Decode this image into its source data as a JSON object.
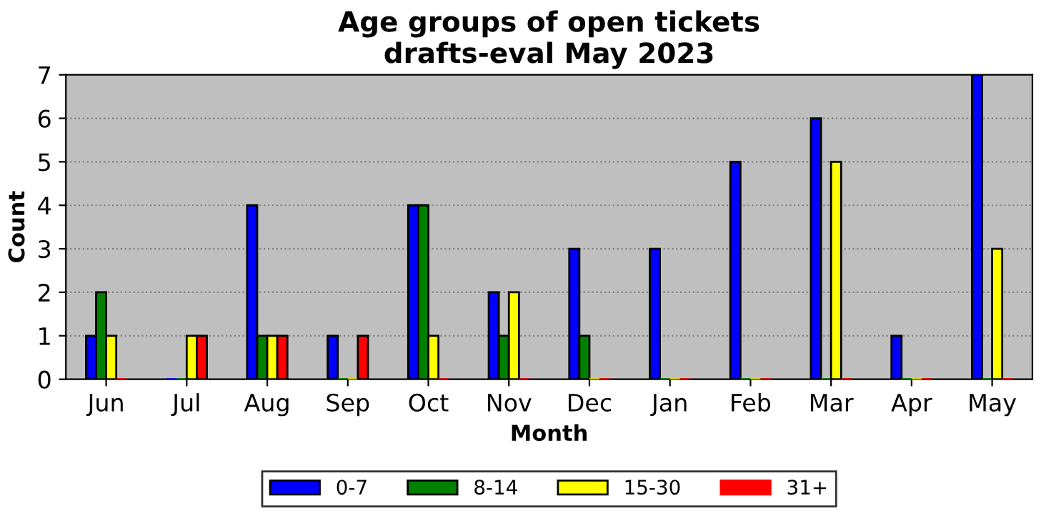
{
  "chart_data": {
    "type": "bar",
    "title": "Age groups of open tickets\ndrafts-eval May 2023",
    "xlabel": "Month",
    "ylabel": "Count",
    "categories": [
      "Jun",
      "Jul",
      "Aug",
      "Sep",
      "Oct",
      "Nov",
      "Dec",
      "Jan",
      "Feb",
      "Mar",
      "Apr",
      "May"
    ],
    "series": [
      {
        "name": "0-7",
        "color": "#0000ff",
        "values": [
          1,
          0,
          4,
          1,
          4,
          2,
          3,
          3,
          5,
          6,
          1,
          7
        ]
      },
      {
        "name": "8-14",
        "color": "#008000",
        "values": [
          2,
          0,
          1,
          0,
          4,
          1,
          1,
          0,
          0,
          0,
          0,
          0
        ]
      },
      {
        "name": "15-30",
        "color": "#ffff00",
        "values": [
          1,
          1,
          1,
          0,
          1,
          2,
          0,
          0,
          0,
          5,
          0,
          3
        ]
      },
      {
        "name": "31+",
        "color": "#ff0000",
        "values": [
          0,
          1,
          1,
          1,
          0,
          0,
          0,
          0,
          0,
          0,
          0,
          0
        ]
      }
    ],
    "ylim": [
      0,
      7
    ],
    "yticks": [
      0,
      1,
      2,
      3,
      4,
      5,
      6,
      7
    ],
    "grid": "y",
    "legend": "bottom"
  }
}
